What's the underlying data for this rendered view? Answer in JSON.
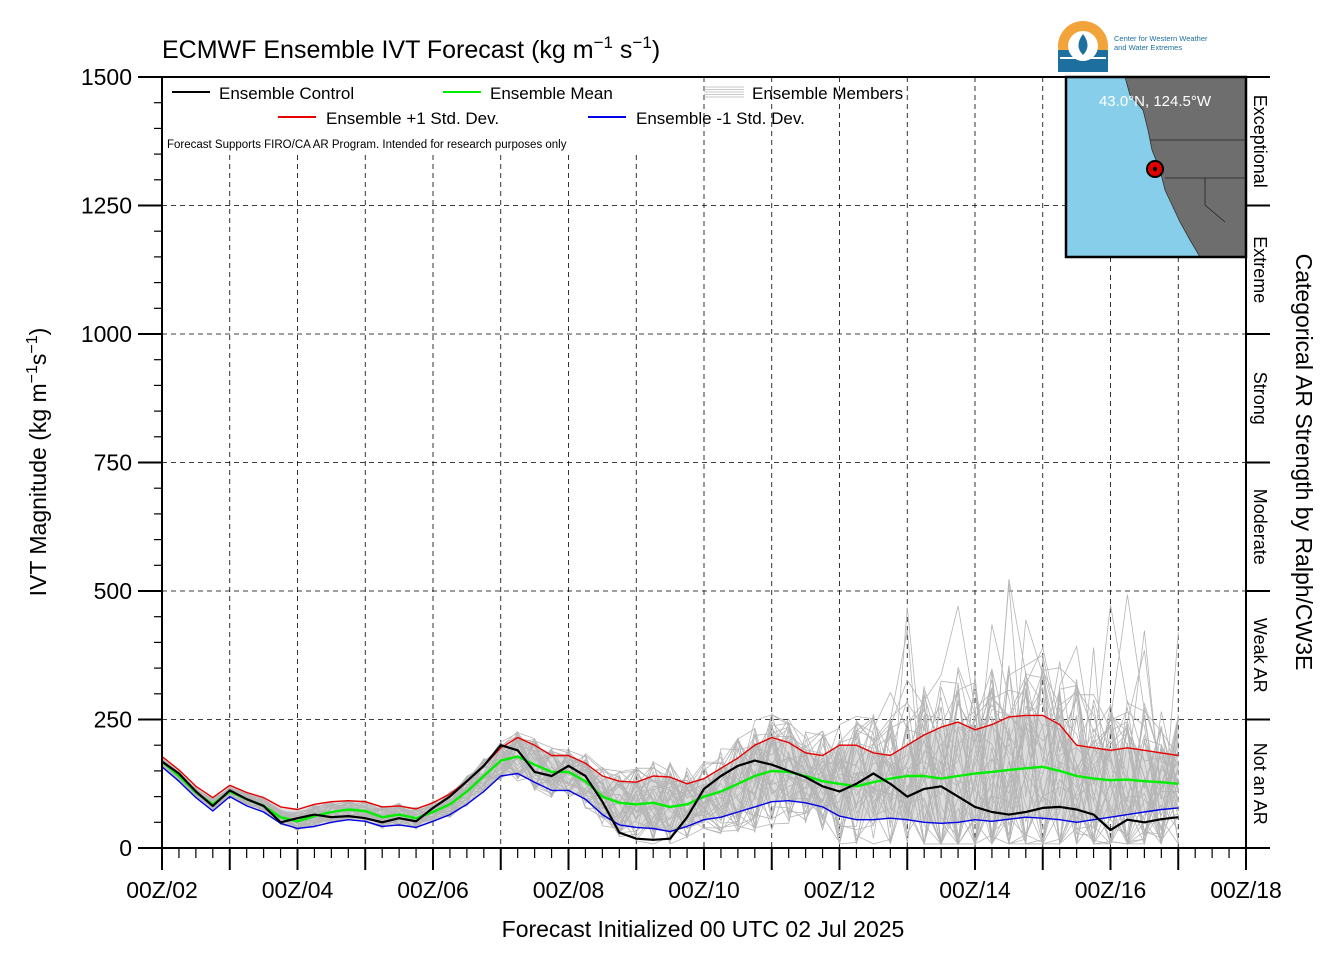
{
  "chart_data": {
    "type": "line",
    "title": "ECMWF Ensemble IVT Forecast (kg m",
    "title_sup1": "−1",
    "title_mid": " s",
    "title_sup2": "−1",
    "title_end": ")",
    "ylabel": "IVT Magnitude (kg m",
    "ylabel_sup1": "−1",
    "ylabel_mid": "s",
    "ylabel_sup2": "−1",
    "ylabel_end": ")",
    "xlabel": "Forecast Initialized 00 UTC 02 Jul 2025",
    "right_label": "Categorical AR Strength by Ralph/CW3E",
    "note": "Forecast Supports FIRO/CA AR Program. Intended for research purposes only",
    "ylim": [
      0,
      1500
    ],
    "xlim_days": [
      2,
      18
    ],
    "grid": true,
    "y_ticks": [
      0,
      250,
      500,
      750,
      1000,
      1250,
      1500
    ],
    "y_tick_labels": [
      "0",
      "250",
      "500",
      "750",
      "1000",
      "1250",
      "1500"
    ],
    "x_ticks": [
      2,
      4,
      6,
      8,
      10,
      12,
      14,
      16,
      18
    ],
    "x_tick_labels": [
      "00Z/02",
      "00Z/04",
      "00Z/06",
      "00Z/08",
      "00Z/10",
      "00Z/12",
      "00Z/14",
      "00Z/16",
      "00Z/18"
    ],
    "categories": [
      {
        "label": "Not an AR",
        "from": 0,
        "to": 250
      },
      {
        "label": "Weak AR",
        "from": 250,
        "to": 500
      },
      {
        "label": "Moderate",
        "from": 500,
        "to": 750
      },
      {
        "label": "Strong",
        "from": 750,
        "to": 1000
      },
      {
        "label": "Extreme",
        "from": 1000,
        "to": 1250
      },
      {
        "label": "Exceptional",
        "from": 1250,
        "to": 1500
      }
    ],
    "legend": {
      "placement": "top-left",
      "control": "Ensemble Control",
      "mean": "Ensemble Mean",
      "members": "Ensemble Members",
      "plus": "Ensemble +1 Std. Dev.",
      "minus": "Ensemble -1 Std. Dev."
    },
    "inset": {
      "coord_label": "43.0°N, 124.5°W",
      "logo_text_1": "Center for Western Weather",
      "logo_text_2": "and Water Extremes"
    },
    "colors": {
      "control": "#000000",
      "mean": "#00ee00",
      "plus": "#e60000",
      "minus": "#0000e6",
      "members": "#b5b5b5",
      "spread_fill": "#dcdcdc",
      "ocean": "#87ceeb",
      "land": "#6e6e6e",
      "marker": "#e00000"
    },
    "series": [
      {
        "name": "Ensemble Control",
        "key": "control",
        "x": [
          2,
          2.25,
          2.5,
          2.75,
          3,
          3.25,
          3.5,
          3.75,
          4,
          4.25,
          4.5,
          4.75,
          5,
          5.25,
          5.5,
          5.75,
          6,
          6.25,
          6.5,
          6.75,
          7,
          7.25,
          7.5,
          7.75,
          8,
          8.25,
          8.5,
          8.75,
          9,
          9.25,
          9.5,
          9.75,
          10,
          10.25,
          10.5,
          10.75,
          11,
          11.25,
          11.5,
          11.75,
          12,
          12.25,
          12.5,
          12.75,
          13,
          13.25,
          13.5,
          13.75,
          14,
          14.25,
          14.5,
          14.75,
          15,
          15.25,
          15.5,
          15.75,
          16,
          16.25,
          16.5,
          16.75,
          17
        ],
        "y": [
          168,
          145,
          110,
          82,
          112,
          95,
          82,
          50,
          58,
          65,
          60,
          62,
          58,
          50,
          58,
          52,
          78,
          100,
          130,
          160,
          200,
          190,
          148,
          140,
          160,
          140,
          90,
          30,
          18,
          16,
          18,
          60,
          115,
          140,
          160,
          170,
          162,
          150,
          138,
          120,
          110,
          125,
          145,
          125,
          100,
          115,
          120,
          100,
          80,
          70,
          65,
          70,
          78,
          80,
          75,
          65,
          35,
          55,
          50,
          56,
          60
        ]
      },
      {
        "name": "Ensemble Mean",
        "key": "mean",
        "x": [
          2,
          2.25,
          2.5,
          2.75,
          3,
          3.25,
          3.5,
          3.75,
          4,
          4.25,
          4.5,
          4.75,
          5,
          5.25,
          5.5,
          5.75,
          6,
          6.25,
          6.5,
          6.75,
          7,
          7.25,
          7.5,
          7.75,
          8,
          8.25,
          8.5,
          8.75,
          9,
          9.25,
          9.5,
          9.75,
          10,
          10.25,
          10.5,
          10.75,
          11,
          11.25,
          11.5,
          11.75,
          12,
          12.25,
          12.5,
          12.75,
          13,
          13.25,
          13.5,
          13.75,
          14,
          14.25,
          14.5,
          14.75,
          15,
          15.25,
          15.5,
          15.75,
          16,
          16.25,
          16.5,
          16.75,
          17
        ],
        "y": [
          168,
          140,
          108,
          85,
          110,
          95,
          82,
          60,
          52,
          62,
          70,
          75,
          72,
          60,
          65,
          58,
          70,
          85,
          110,
          140,
          170,
          178,
          162,
          148,
          148,
          130,
          100,
          88,
          85,
          88,
          80,
          85,
          100,
          110,
          125,
          140,
          150,
          148,
          140,
          130,
          125,
          120,
          128,
          135,
          140,
          140,
          135,
          140,
          145,
          148,
          152,
          155,
          158,
          150,
          140,
          135,
          132,
          133,
          130,
          128,
          125
        ]
      },
      {
        "name": "Ensemble +1 Std. Dev.",
        "key": "plus",
        "x": [
          2,
          2.25,
          2.5,
          2.75,
          3,
          3.25,
          3.5,
          3.75,
          4,
          4.25,
          4.5,
          4.75,
          5,
          5.25,
          5.5,
          5.75,
          6,
          6.25,
          6.5,
          6.75,
          7,
          7.25,
          7.5,
          7.75,
          8,
          8.25,
          8.5,
          8.75,
          9,
          9.25,
          9.5,
          9.75,
          10,
          10.25,
          10.5,
          10.75,
          11,
          11.25,
          11.5,
          11.75,
          12,
          12.25,
          12.5,
          12.75,
          13,
          13.25,
          13.5,
          13.75,
          14,
          14.25,
          14.5,
          14.75,
          15,
          15.25,
          15.5,
          15.75,
          16,
          16.25,
          16.5,
          16.75,
          17
        ],
        "y": [
          178,
          152,
          120,
          98,
          122,
          108,
          98,
          80,
          75,
          85,
          90,
          92,
          90,
          80,
          82,
          76,
          88,
          105,
          130,
          160,
          195,
          215,
          200,
          180,
          180,
          165,
          140,
          130,
          128,
          140,
          138,
          125,
          135,
          155,
          175,
          200,
          215,
          205,
          185,
          180,
          200,
          200,
          185,
          180,
          200,
          220,
          235,
          245,
          230,
          240,
          255,
          258,
          258,
          240,
          200,
          195,
          190,
          195,
          190,
          185,
          180
        ]
      },
      {
        "name": "Ensemble -1 Std. Dev.",
        "key": "minus",
        "x": [
          2,
          2.25,
          2.5,
          2.75,
          3,
          3.25,
          3.5,
          3.75,
          4,
          4.25,
          4.5,
          4.75,
          5,
          5.25,
          5.5,
          5.75,
          6,
          6.25,
          6.5,
          6.75,
          7,
          7.25,
          7.5,
          7.75,
          8,
          8.25,
          8.5,
          8.75,
          9,
          9.25,
          9.5,
          9.75,
          10,
          10.25,
          10.5,
          10.75,
          11,
          11.25,
          11.5,
          11.75,
          12,
          12.25,
          12.5,
          12.75,
          13,
          13.25,
          13.5,
          13.75,
          14,
          14.25,
          14.5,
          14.75,
          15,
          15.25,
          15.5,
          15.75,
          16,
          16.25,
          16.5,
          16.75,
          17
        ],
        "y": [
          158,
          130,
          98,
          72,
          100,
          82,
          70,
          48,
          38,
          42,
          50,
          55,
          52,
          42,
          45,
          40,
          52,
          65,
          85,
          110,
          140,
          145,
          128,
          112,
          112,
          95,
          65,
          45,
          40,
          38,
          32,
          42,
          55,
          60,
          70,
          80,
          90,
          92,
          88,
          80,
          62,
          55,
          55,
          58,
          55,
          50,
          48,
          50,
          55,
          52,
          56,
          60,
          58,
          55,
          50,
          55,
          60,
          65,
          70,
          75,
          78
        ]
      }
    ]
  }
}
